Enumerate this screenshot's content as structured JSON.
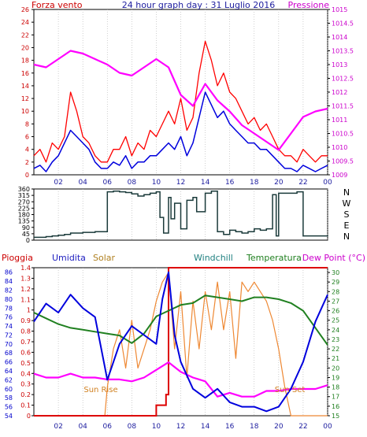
{
  "top_panel": {
    "title": "24 hour graph day : 31 Luglio 2016",
    "left_label": "Forza vento",
    "right_label": "Pressione",
    "colors": {
      "gust": "#ff0000",
      "wind": "#0000dd",
      "pressure": "#ff00ff",
      "text_left": "#cc0000",
      "text_right": "#cc00cc",
      "title": "#2020a0"
    }
  },
  "middle_panel": {
    "compass": [
      "N",
      "W",
      "S",
      "E",
      "N"
    ],
    "colors": {
      "direction": "#1a3a3a"
    }
  },
  "bottom_panel": {
    "legend": {
      "rain": "Pioggia",
      "humidity": "Umidita",
      "solar": "Solar",
      "windchill": "Windchill",
      "temperature": "Temperatura",
      "dewpoint": "Dew Point (°C)"
    },
    "annotations": {
      "sunrise": "Sun Rise",
      "sunset": "Sun Set"
    },
    "colors": {
      "rain": "#dd0000",
      "humidity": "#0000dd",
      "solar": "#ee8833",
      "windchill": "#208020",
      "temperature": "#208020",
      "dewpoint": "#ff00ff"
    }
  },
  "chart_data": [
    {
      "type": "line",
      "title": "24 hour graph day : 31 Luglio 2016",
      "x_ticks": [
        "02",
        "04",
        "06",
        "08",
        "10",
        "12",
        "14",
        "16",
        "18",
        "20",
        "22",
        "00"
      ],
      "x_range": [
        0,
        24
      ],
      "y_left": {
        "label": "Forza vento",
        "ticks": [
          0,
          2,
          4,
          6,
          8,
          10,
          12,
          14,
          16,
          18,
          20,
          22,
          24,
          26
        ],
        "range": [
          0,
          26
        ]
      },
      "y_right": {
        "label": "Pressione",
        "ticks": [
          1009,
          1009.5,
          1010,
          1010.5,
          1011,
          1011.5,
          1012,
          1012.5,
          1013,
          1013.5,
          1014,
          1014.5,
          1015
        ],
        "range": [
          1009,
          1015
        ]
      },
      "series": [
        {
          "axis": "left",
          "x": [
            0,
            0.5,
            1,
            1.5,
            2,
            2.5,
            3,
            3.5,
            4,
            4.5,
            5,
            5.5,
            6,
            6.5,
            7,
            7.5,
            8,
            8.5,
            9,
            9.5,
            10,
            10.5,
            11,
            11.5,
            12,
            12.5,
            13,
            13.5,
            14,
            14.5,
            15,
            15.5,
            16,
            16.5,
            17,
            17.5,
            18,
            18.5,
            19,
            19.5,
            20,
            20.5,
            21,
            21.5,
            22,
            22.5,
            23,
            23.5,
            24
          ],
          "values": [
            3,
            4,
            2,
            5,
            4,
            6,
            13,
            10,
            6,
            5,
            3,
            2,
            2,
            4,
            4,
            6,
            3,
            5,
            4,
            7,
            6,
            8,
            10,
            8,
            12,
            7,
            9,
            16,
            21,
            18,
            14,
            16,
            13,
            12,
            10,
            8,
            9,
            7,
            8,
            6,
            4,
            3,
            3,
            2,
            4,
            3,
            2,
            3,
            3
          ]
        },
        {
          "axis": "left",
          "x": [
            0,
            0.5,
            1,
            1.5,
            2,
            2.5,
            3,
            3.5,
            4,
            4.5,
            5,
            5.5,
            6,
            6.5,
            7,
            7.5,
            8,
            8.5,
            9,
            9.5,
            10,
            10.5,
            11,
            11.5,
            12,
            12.5,
            13,
            13.5,
            14,
            14.5,
            15,
            15.5,
            16,
            16.5,
            17,
            17.5,
            18,
            18.5,
            19,
            19.5,
            20,
            20.5,
            21,
            21.5,
            22,
            22.5,
            23,
            23.5,
            24
          ],
          "values": [
            1,
            1.5,
            0.5,
            2,
            3,
            5,
            7,
            6,
            5,
            4,
            2,
            1,
            1,
            2,
            1.5,
            3,
            1,
            2,
            2,
            3,
            3,
            4,
            5,
            4,
            6,
            3,
            5,
            9,
            13,
            11,
            9,
            10,
            8,
            7,
            6,
            5,
            5,
            4,
            4,
            3,
            2,
            1,
            1,
            0.5,
            1.5,
            1,
            0.5,
            1,
            1.5
          ]
        },
        {
          "axis": "right",
          "x": [
            0,
            1,
            2,
            3,
            4,
            5,
            6,
            7,
            8,
            9,
            10,
            11,
            12,
            13,
            14,
            15,
            16,
            17,
            18,
            19,
            20,
            21,
            22,
            23,
            24
          ],
          "values": [
            1013.0,
            1012.9,
            1013.2,
            1013.5,
            1013.4,
            1013.2,
            1013.0,
            1012.7,
            1012.6,
            1012.9,
            1013.2,
            1012.9,
            1011.9,
            1011.5,
            1012.3,
            1011.7,
            1011.3,
            1010.8,
            1010.5,
            1010.2,
            1009.9,
            1010.5,
            1011.1,
            1011.3,
            1011.4
          ]
        }
      ]
    },
    {
      "type": "line",
      "x_range": [
        0,
        24
      ],
      "y_ticks": [
        0,
        45,
        90,
        135,
        180,
        225,
        270,
        315,
        360
      ],
      "y_range": [
        0,
        360
      ],
      "series": [
        {
          "x": [
            0,
            1,
            1.5,
            2,
            2.5,
            3,
            4,
            5,
            5.8,
            6,
            6.5,
            7,
            7.5,
            8,
            8.5,
            9,
            9.5,
            10,
            10.3,
            10.6,
            11,
            11.2,
            11.5,
            12,
            12.5,
            13,
            13.3,
            14,
            14.5,
            15,
            15.5,
            16,
            16.5,
            17,
            17.5,
            18,
            18.5,
            19,
            19.5,
            19.8,
            20,
            20.5,
            21,
            21.5,
            22,
            23,
            24
          ],
          "values": [
            20,
            25,
            30,
            35,
            40,
            50,
            55,
            60,
            60,
            340,
            345,
            340,
            335,
            325,
            310,
            320,
            330,
            340,
            160,
            50,
            300,
            150,
            260,
            80,
            280,
            300,
            200,
            330,
            345,
            60,
            40,
            70,
            60,
            50,
            60,
            80,
            70,
            80,
            320,
            30,
            330,
            330,
            330,
            340,
            30,
            30,
            35
          ]
        }
      ]
    },
    {
      "type": "line",
      "x_range": [
        0,
        24
      ],
      "y_left": {
        "label": "Umidita",
        "ticks": [
          54,
          56,
          58,
          60,
          62,
          64,
          66,
          68,
          70,
          72,
          74,
          76,
          78,
          80,
          82,
          84,
          86
        ],
        "range": [
          54,
          87
        ]
      },
      "y_left_rain": {
        "label": "Pioggia",
        "ticks": [
          0,
          0.1,
          0.2,
          0.3,
          0.4,
          0.5,
          0.6,
          0.7,
          0.8,
          0.9,
          1,
          1.1,
          1.2,
          1.3,
          1.4
        ],
        "range": [
          0,
          1.4
        ]
      },
      "y_right": {
        "label": "Dew Point (°C)",
        "ticks": [
          15,
          16,
          17,
          18,
          19,
          20,
          21,
          22,
          23,
          24,
          25,
          26,
          27,
          28,
          29,
          30
        ],
        "range": [
          15,
          30.5
        ]
      },
      "series": [
        {
          "name": "Pioggia",
          "axis": "rain",
          "x": [
            0,
            9.9,
            10.0,
            10.5,
            10.8,
            11,
            24
          ],
          "values": [
            0,
            0,
            0.1,
            0.1,
            0.2,
            1.4,
            1.4
          ]
        },
        {
          "name": "Umidita",
          "axis": "left",
          "x": [
            0,
            1,
            2,
            3,
            4,
            5,
            6,
            7,
            8,
            9,
            10,
            10.5,
            11,
            11.5,
            12,
            13,
            14,
            15,
            16,
            17,
            18,
            19,
            20,
            21,
            22,
            23,
            24
          ],
          "values": [
            75,
            79,
            77,
            81,
            78,
            76,
            62,
            70,
            74,
            72,
            70,
            80,
            86,
            72,
            66,
            60,
            58,
            60,
            57,
            56,
            56,
            55,
            56,
            60,
            66,
            75,
            81
          ]
        },
        {
          "name": "Solar",
          "axis": "right",
          "x": [
            0,
            5.8,
            6,
            6.5,
            7,
            7.5,
            8,
            8.5,
            9,
            9.5,
            10,
            10.5,
            11,
            11.5,
            12,
            12.5,
            13,
            13.5,
            14,
            14.5,
            15,
            15.5,
            16,
            16.5,
            17,
            17.5,
            18,
            18.5,
            19,
            19.5,
            20,
            20.5,
            21,
            24
          ],
          "values": [
            15,
            15,
            18,
            22,
            24,
            20,
            25,
            20,
            22,
            24,
            27,
            29,
            30,
            22,
            28,
            19,
            27,
            22,
            28,
            24,
            29,
            24,
            28,
            21,
            29,
            28,
            29,
            28,
            27,
            25,
            22,
            18,
            15,
            15
          ]
        },
        {
          "name": "Windchill",
          "axis": "right",
          "x": [
            0,
            1,
            2,
            3,
            4,
            5,
            6,
            7,
            8,
            9,
            10,
            11,
            12,
            13,
            14,
            15,
            16,
            17,
            18,
            19,
            20,
            21,
            22,
            23,
            24
          ],
          "values": [
            25.8,
            25.2,
            24.6,
            24.2,
            24.0,
            23.8,
            23.6,
            23.4,
            22.6,
            23.6,
            25.4,
            26.0,
            26.6,
            26.8,
            27.6,
            27.4,
            27.2,
            27.0,
            27.4,
            27.4,
            27.2,
            26.8,
            26.0,
            24.2,
            22.4
          ]
        },
        {
          "name": "Dew Point (°C)",
          "axis": "right",
          "x": [
            0,
            1,
            2,
            3,
            4,
            5,
            6,
            7,
            8,
            9,
            10,
            11,
            12,
            13,
            14,
            15,
            16,
            17,
            18,
            19,
            20,
            21,
            22,
            23,
            24
          ],
          "values": [
            19.4,
            19.0,
            19.0,
            19.4,
            19.0,
            19.0,
            18.8,
            18.8,
            18.6,
            19.0,
            19.8,
            20.6,
            19.6,
            19.0,
            18.6,
            17.0,
            17.4,
            17.0,
            17.0,
            17.6,
            17.6,
            17.8,
            17.8,
            17.8,
            18.2
          ]
        }
      ]
    }
  ]
}
